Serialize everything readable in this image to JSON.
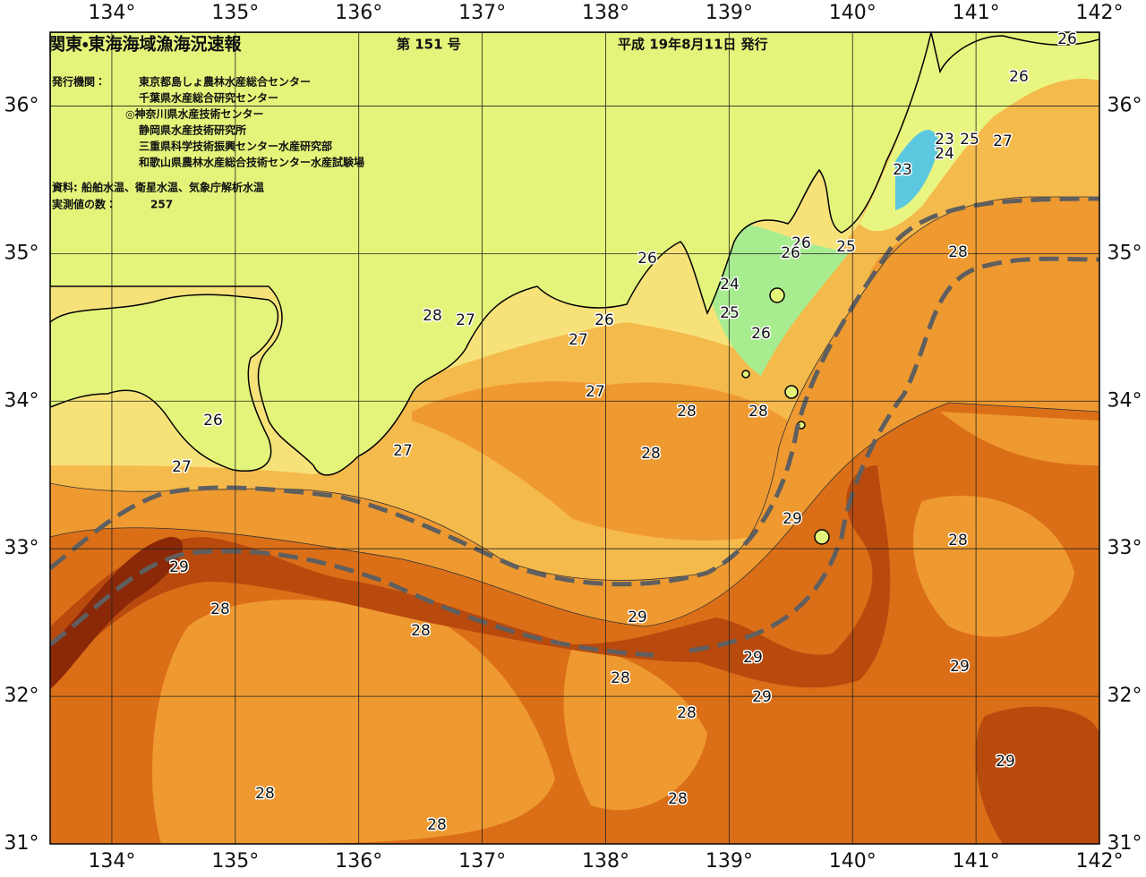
{
  "header": {
    "title": "関東・東海海域漁海況速報",
    "issue": "第 151 号",
    "date": "平成 19年8月11日 発行",
    "issuer_label": "発行機関：",
    "issuers": [
      "東京都島しょ農林水産総合センター",
      "千葉県水産総合研究センター",
      "◎神奈川県水産技術センター",
      "静岡県水産技術研究所",
      "三重県科学技術振興センター水産研究部",
      "和歌山県農林水産総合技術センター水産試験場"
    ],
    "source": "資料: 船舶水温、衛星水温、気象庁解析水温",
    "count_label": "実測値の数：",
    "count": "257"
  },
  "map": {
    "lon_range": [
      133.5,
      142
    ],
    "lat_range": [
      31,
      36.5
    ],
    "lon_ticks": [
      {
        "value": 134,
        "label": "134°"
      },
      {
        "value": 135,
        "label": "135°"
      },
      {
        "value": 136,
        "label": "136°"
      },
      {
        "value": 137,
        "label": "137°"
      },
      {
        "value": 138,
        "label": "138°"
      },
      {
        "value": 139,
        "label": "139°"
      },
      {
        "value": 140,
        "label": "140°"
      },
      {
        "value": 141,
        "label": "141°"
      },
      {
        "value": 142,
        "label": "142°"
      }
    ],
    "lat_ticks": [
      {
        "value": 36,
        "label": "36°"
      },
      {
        "value": 35,
        "label": "35°"
      },
      {
        "value": 34,
        "label": "34°"
      },
      {
        "value": 33,
        "label": "33°"
      },
      {
        "value": 32,
        "label": "32°"
      },
      {
        "value": 31,
        "label": "31°"
      }
    ]
  },
  "contour_labels": [
    26,
    26,
    23,
    25,
    24,
    27,
    23,
    26,
    26,
    25,
    26,
    28,
    24,
    25,
    28,
    27,
    26,
    27,
    26,
    27,
    28,
    28,
    26,
    27,
    28,
    27,
    29,
    28,
    29,
    28,
    29,
    28,
    29,
    29,
    28,
    29,
    28,
    29,
    28,
    28,
    28
  ]
}
